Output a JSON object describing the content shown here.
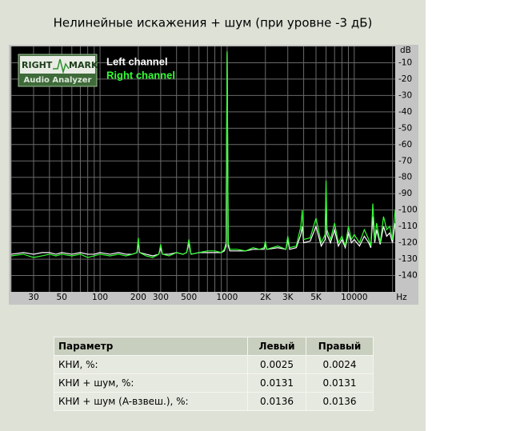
{
  "chart_data": {
    "type": "line",
    "title": "Нелинейные искажения + шум (при уровне -3 дБ)",
    "y_label": "dB",
    "x_label": "Hz",
    "logo": [
      "RIGHT",
      "MARK",
      "Audio Analyzer"
    ],
    "xscale": "log",
    "grid": true,
    "xlim": [
      20,
      21000
    ],
    "ylim": [
      -150,
      0
    ],
    "xticks": [
      30,
      50,
      100,
      200,
      300,
      500,
      1000,
      {
        "value": 2000,
        "label": "2K"
      },
      {
        "value": 3000,
        "label": "3K"
      },
      {
        "value": 5000,
        "label": "5K"
      },
      10000
    ],
    "xgrid": [
      20,
      30,
      40,
      50,
      60,
      70,
      80,
      90,
      100,
      200,
      300,
      400,
      500,
      600,
      700,
      800,
      900,
      1000,
      2000,
      3000,
      4000,
      5000,
      6000,
      7000,
      8000,
      9000,
      10000,
      20000
    ],
    "yticks": [
      -10,
      -20,
      -30,
      -40,
      -50,
      -60,
      -70,
      -80,
      -90,
      -100,
      -110,
      -120,
      -130,
      -140
    ],
    "x": [
      20,
      25,
      30,
      35,
      40,
      45,
      50,
      60,
      70,
      80,
      90,
      100,
      120,
      140,
      160,
      180,
      195,
      200,
      205,
      230,
      260,
      290,
      300,
      310,
      350,
      400,
      450,
      480,
      500,
      520,
      600,
      700,
      800,
      900,
      950,
      980,
      1000,
      1020,
      1050,
      1200,
      1400,
      1600,
      1800,
      1950,
      2000,
      2050,
      2500,
      2900,
      3000,
      3100,
      3500,
      3800,
      3900,
      4000,
      4500,
      5000,
      5500,
      5900,
      6000,
      6100,
      6500,
      7000,
      7500,
      8000,
      8500,
      9000,
      9500,
      10000,
      11000,
      12000,
      13000,
      13500,
      14000,
      14500,
      15000,
      16000,
      17000,
      18000,
      19000,
      20000,
      21000
    ],
    "series": [
      {
        "name": "Left channel",
        "color": "#ffffff",
        "values": [
          -127,
          -126,
          -127,
          -126,
          -126,
          -127,
          -126,
          -127,
          -126,
          -127,
          -127,
          -126,
          -127,
          -126,
          -127,
          -127,
          -126,
          -120,
          -126,
          -127,
          -128,
          -127,
          -123,
          -127,
          -127,
          -126,
          -127,
          -126,
          -120,
          -127,
          -126,
          -126,
          -126,
          -126,
          -125,
          -122,
          -4,
          -122,
          -125,
          -125,
          -125,
          -124,
          -124,
          -124,
          -121,
          -124,
          -123,
          -124,
          -118,
          -124,
          -123,
          -115,
          -110,
          -120,
          -119,
          -110,
          -122,
          -118,
          -90,
          -115,
          -120,
          -112,
          -122,
          -118,
          -123,
          -114,
          -120,
          -118,
          -122,
          -116,
          -120,
          -123,
          -104,
          -120,
          -112,
          -121,
          -110,
          -116,
          -114,
          -120,
          -108
        ]
      },
      {
        "name": "Right channel",
        "color": "#33ff33",
        "values": [
          -128,
          -127,
          -129,
          -128,
          -127,
          -128,
          -127,
          -128,
          -127,
          -129,
          -128,
          -127,
          -128,
          -127,
          -128,
          -127,
          -126,
          -117,
          -126,
          -128,
          -129,
          -127,
          -121,
          -127,
          -128,
          -126,
          -127,
          -126,
          -118,
          -127,
          -126,
          -125,
          -125,
          -126,
          -124,
          -120,
          -3,
          -120,
          -124,
          -124,
          -125,
          -123,
          -124,
          -123,
          -119,
          -124,
          -122,
          -124,
          -116,
          -123,
          -122,
          -110,
          -100,
          -118,
          -117,
          -105,
          -120,
          -115,
          -82,
          -112,
          -118,
          -108,
          -120,
          -116,
          -122,
          -110,
          -118,
          -115,
          -120,
          -112,
          -118,
          -122,
          -96,
          -118,
          -108,
          -120,
          -104,
          -112,
          -110,
          -118,
          -100
        ]
      }
    ]
  },
  "table": {
    "header": [
      "Параметр",
      "Левый",
      "Правый"
    ],
    "rows": [
      [
        "КНИ, %:",
        "0.0025",
        "0.0024"
      ],
      [
        "КНИ + шум, %:",
        "0.0131",
        "0.0131"
      ],
      [
        "КНИ + шум (A-взвеш.), %:",
        "0.0136",
        "0.0136"
      ]
    ]
  }
}
